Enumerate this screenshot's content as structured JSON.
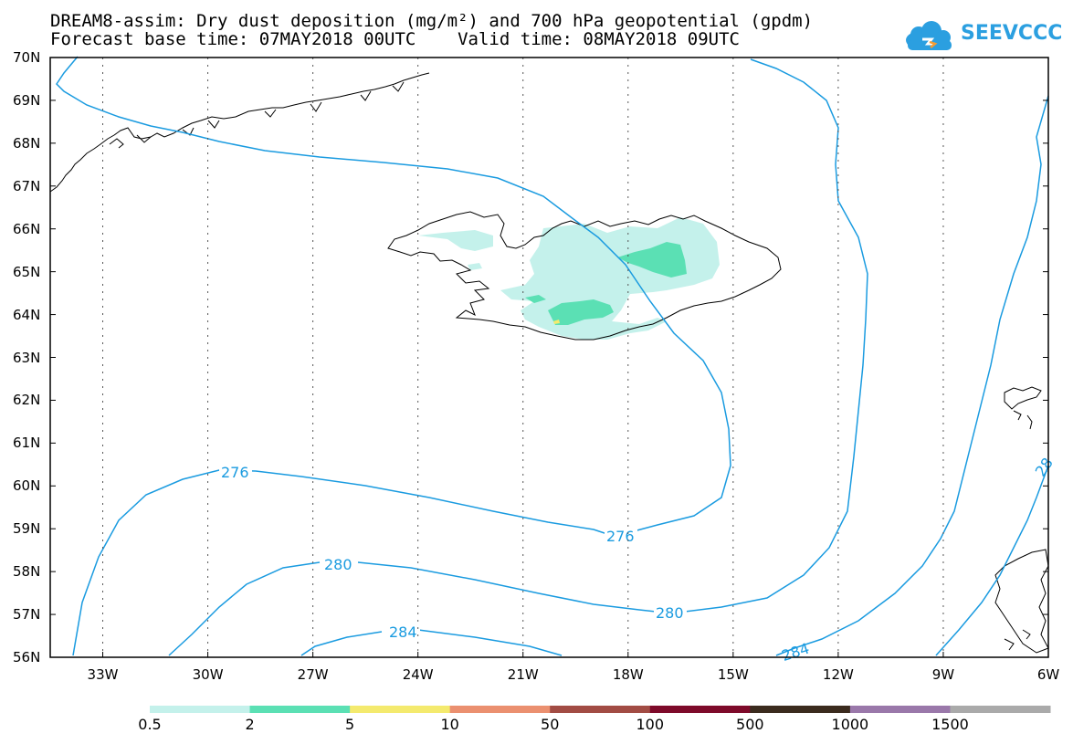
{
  "title": {
    "line1": "DREAM8-assim: Dry dust deposition (mg/m²) and 700 hPa geopotential (gpdm)",
    "line2": "Forecast base time: 07MAY2018 00UTC    Valid time: 08MAY2018 09UTC"
  },
  "logo": {
    "text": "SEEVCCC",
    "color": "#2b9fe0"
  },
  "axes": {
    "lat_labels": [
      "70N",
      "69N",
      "68N",
      "67N",
      "66N",
      "65N",
      "64N",
      "63N",
      "62N",
      "61N",
      "60N",
      "59N",
      "58N",
      "57N",
      "56N"
    ],
    "lon_labels": [
      "33W",
      "30W",
      "27W",
      "24W",
      "21W",
      "18W",
      "15W",
      "12W",
      "9W",
      "6W"
    ],
    "lat_range": [
      56,
      70
    ],
    "lon_range": [
      -34.5,
      -6
    ],
    "grid": true,
    "gridline_style": "dotted"
  },
  "contours": {
    "variable": "700 hPa geopotential",
    "unit": "gpdm",
    "color": "#1a9be0",
    "labels": [
      {
        "value": "276",
        "text": "276"
      },
      {
        "value": "276",
        "text": "276"
      },
      {
        "value": "280",
        "text": "280"
      },
      {
        "value": "280",
        "text": "280"
      },
      {
        "value": "284",
        "text": "284"
      },
      {
        "value": "284",
        "text": "284"
      },
      {
        "value": "28",
        "text": "28"
      }
    ]
  },
  "dust": {
    "variable": "Dry dust deposition",
    "unit": "mg/m²",
    "region": "Iceland"
  },
  "legend": {
    "labels": [
      "0.5",
      "2",
      "5",
      "10",
      "50",
      "100",
      "500",
      "1000",
      "1500"
    ],
    "colors": [
      "#c4f1eb",
      "#5be0b4",
      "#f4ea6e",
      "#eb9070",
      "#a24c44",
      "#7e0a2a",
      "#3b2b1e",
      "#9a78aa",
      "#aaaaaa"
    ]
  }
}
